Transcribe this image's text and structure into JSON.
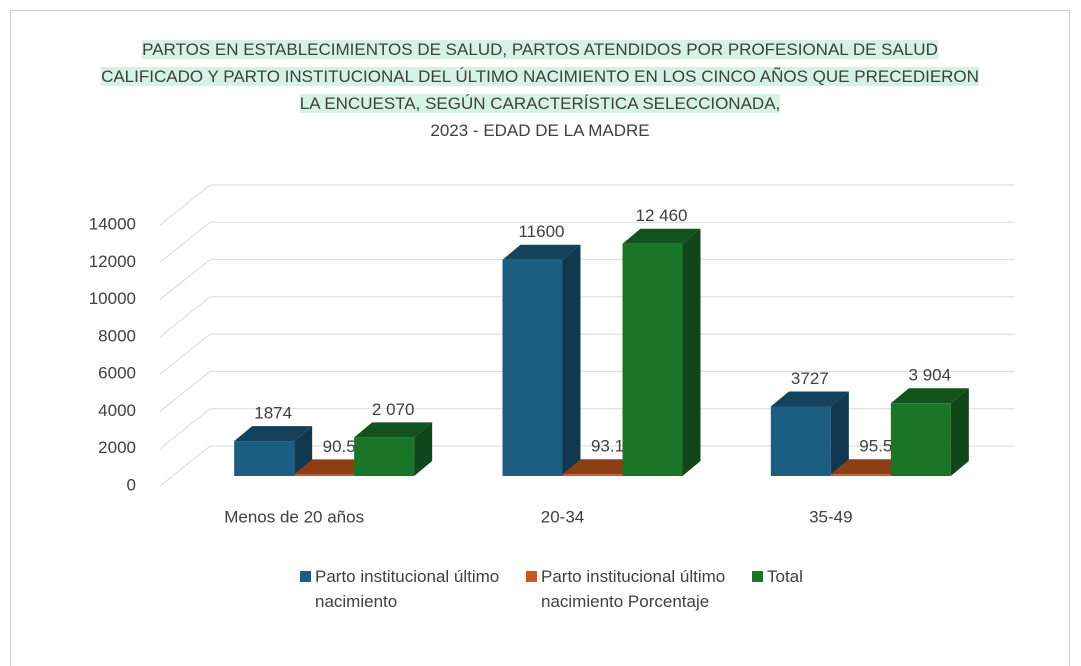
{
  "chart_data": {
    "type": "bar3d",
    "title": "PARTOS EN ESTABLECIMIENTOS DE SALUD, PARTOS ATENDIDOS POR PROFESIONAL DE SALUD CALIFICADO Y PARTO INSTITUCIONAL DEL ÚLTIMO NACIMIENTO EN LOS CINCO AÑOS QUE PRECEDIERON LA ENCUESTA, SEGÚN CARACTERÍSTICA SELECCIONADA,",
    "subtitle": "2023 - EDAD DE LA MADRE",
    "categories": [
      "Menos de 20 años",
      "20-34",
      "35-49"
    ],
    "series": [
      {
        "name": "Parto institucional último nacimiento",
        "color": "#1c5d82",
        "values": [
          1874,
          11600,
          3727
        ]
      },
      {
        "name": "Parto institucional último nacimiento Porcentaje",
        "color": "#c85a20",
        "values": [
          90.5,
          93.1,
          95.5
        ]
      },
      {
        "name": "Total",
        "color": "#1a7529",
        "values": [
          2070,
          12460,
          3904
        ],
        "value_labels": [
          "2 070",
          "12 460",
          "3 904"
        ]
      }
    ],
    "ylim": [
      0,
      14000
    ],
    "yticks": [
      0,
      2000,
      4000,
      6000,
      8000,
      10000,
      12000,
      14000
    ],
    "grid": true,
    "legend": "bottom"
  }
}
